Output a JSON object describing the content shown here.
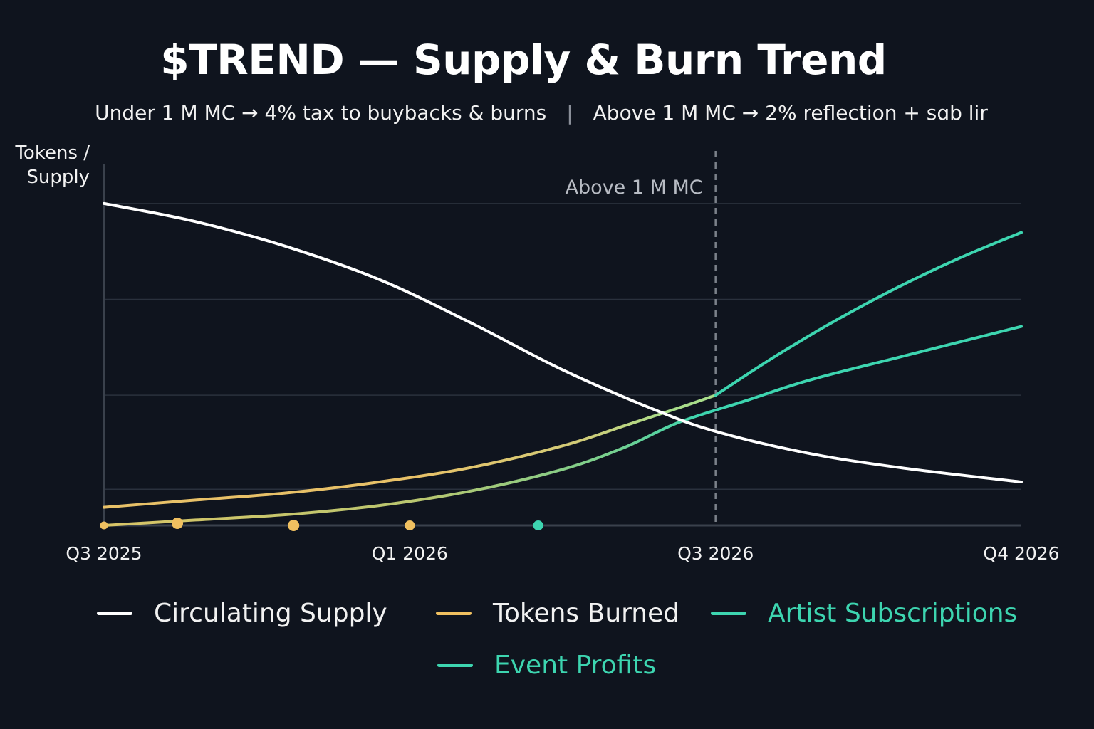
{
  "chart_data": {
    "type": "line",
    "title": "$TREND — Supply & Burn Trend",
    "subtitle_left": "Under 1 M MC → 4% tax to buybacks & burns",
    "subtitle_right": "Above  1 M MC → 2% reflection + sɑb lir",
    "ylabel": "Tokens /\nSupply",
    "xlabel": "",
    "x_ticks": [
      "Q3 2025",
      "Q1 2026",
      "Q3 2026",
      "Q4 2026"
    ],
    "x_tick_positions": [
      0,
      0.5,
      1.0,
      1.5
    ],
    "xlim": [
      0,
      1.5
    ],
    "ylim": [
      0,
      100
    ],
    "grid": true,
    "annotations": [
      {
        "x": 1.0,
        "label": "Above 1 M MC",
        "style": "dashed-vertical"
      }
    ],
    "legend_placement": "bottom",
    "series": [
      {
        "name": "Circulating Supply",
        "color": "#ffffff",
        "x": [
          0,
          0.15,
          0.3,
          0.45,
          0.6,
          0.75,
          0.9,
          1.0,
          1.15,
          1.3,
          1.5
        ],
        "values": [
          89,
          84,
          77,
          68,
          56,
          43,
          32,
          26,
          20,
          16,
          12
        ]
      },
      {
        "name": "Tokens Burned",
        "color": "#f0c060",
        "x": [
          0,
          0.15,
          0.3,
          0.45,
          0.6,
          0.75,
          0.85,
          0.94,
          1.0
        ],
        "values": [
          5,
          7,
          9,
          12,
          16,
          22,
          27.5,
          32.5,
          36
        ]
      },
      {
        "name": "Artist Subscriptions",
        "color": "#3dd5b0",
        "x": [
          1.0,
          1.1,
          1.2,
          1.3,
          1.4,
          1.5
        ],
        "values": [
          36,
          47,
          57,
          66,
          74,
          81
        ]
      },
      {
        "name": "Event Profits",
        "color": "#3dd5b0",
        "x": [
          0,
          0.15,
          0.3,
          0.45,
          0.6,
          0.75,
          0.85,
          0.94,
          1.05,
          1.15,
          1.3,
          1.5
        ],
        "values": [
          0,
          1.5,
          3,
          5.5,
          9.5,
          15.5,
          21.5,
          28.5,
          34.5,
          40,
          46.5,
          55
        ]
      }
    ],
    "markers": [
      {
        "x": 0.0,
        "y": 0,
        "color": "#f0c060",
        "size": "small"
      },
      {
        "x": 0.12,
        "y": 0.6,
        "color": "#f0c060",
        "size": "large"
      },
      {
        "x": 0.31,
        "y": 0,
        "color": "#f0c060",
        "size": "large"
      },
      {
        "x": 0.5,
        "y": 0,
        "color": "#f0c060",
        "size": "medium"
      },
      {
        "x": 0.71,
        "y": 0,
        "color": "#3dd5b0",
        "size": "medium"
      }
    ]
  },
  "colors": {
    "background": "#0f141e",
    "grid": "#2a313d",
    "axis": "#3a414c",
    "annotation_line": "#7c818a",
    "gradient_start": "#e8c168",
    "gradient_end": "#3dd5b0"
  }
}
